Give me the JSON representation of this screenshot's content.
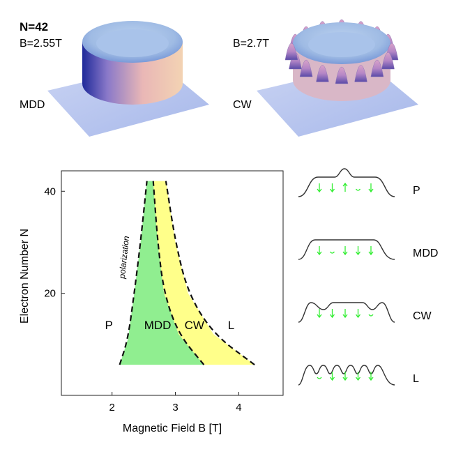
{
  "surfaces": {
    "n_label": "N=42",
    "left": {
      "field_label": "B=2.55T",
      "state_label": "MDD"
    },
    "right": {
      "field_label": "B=2.7T",
      "state_label": "CW",
      "peak_count": 16
    }
  },
  "chart_data": {
    "type": "area",
    "title": "",
    "xlabel": "Magnetic Field B [T]",
    "ylabel": "Electron Number N",
    "xlim": [
      1.2,
      4.7
    ],
    "ylim": [
      0,
      44
    ],
    "x_ticks": [
      2,
      3,
      4
    ],
    "y_ticks": [
      20,
      40
    ],
    "grid": false,
    "boundaries": [
      {
        "name": "polarization",
        "points": [
          [
            2.12,
            6
          ],
          [
            2.25,
            11
          ],
          [
            2.35,
            20
          ],
          [
            2.45,
            30
          ],
          [
            2.55,
            42
          ]
        ]
      },
      {
        "name": "MDD-CW",
        "points": [
          [
            3.45,
            6
          ],
          [
            3.05,
            12
          ],
          [
            2.82,
            20
          ],
          [
            2.72,
            30
          ],
          [
            2.65,
            42
          ]
        ]
      },
      {
        "name": "CW-L",
        "points": [
          [
            4.25,
            6
          ],
          [
            3.6,
            12
          ],
          [
            3.2,
            20
          ],
          [
            3.0,
            30
          ],
          [
            2.85,
            42
          ]
        ]
      }
    ],
    "regions": [
      {
        "label": "P",
        "x": 1.95,
        "y": 13,
        "color": ""
      },
      {
        "label": "MDD",
        "x": 2.72,
        "y": 13,
        "color": "#90ee90"
      },
      {
        "label": "CW",
        "x": 3.3,
        "y": 13,
        "color": "#ffff8a"
      },
      {
        "label": "L",
        "x": 3.88,
        "y": 13,
        "color": ""
      }
    ],
    "annotations": [
      {
        "text": "polarization"
      }
    ]
  },
  "profiles": [
    {
      "label": "P",
      "spins": [
        "down",
        "down",
        "up",
        "none",
        "down"
      ]
    },
    {
      "label": "MDD",
      "spins": [
        "down",
        "none",
        "down",
        "down",
        "down"
      ]
    },
    {
      "label": "CW",
      "spins": [
        "down",
        "down",
        "down",
        "down",
        "none"
      ]
    },
    {
      "label": "L",
      "spins": [
        "none",
        "down",
        "down",
        "down",
        "down"
      ]
    }
  ],
  "colors": {
    "mdd_fill": "#90ee90",
    "cw_fill": "#ffff8a",
    "spin_arrow": "#33ee33",
    "plane": "#b8c6ee"
  }
}
